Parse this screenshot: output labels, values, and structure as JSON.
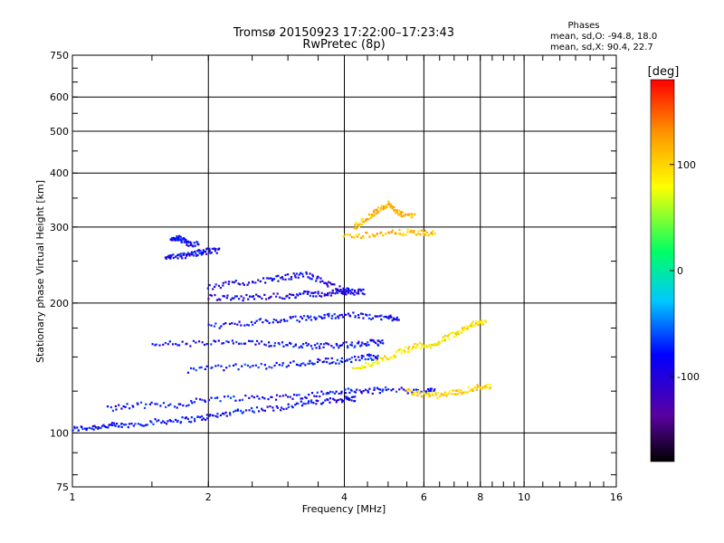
{
  "header": {
    "title_line1": "Tromsø 20150923 17:22:00–17:23:43",
    "title_line2": "RwPretec (8p)",
    "phases_title": "Phases",
    "phases_o": "mean, sd,O: -94.8, 18.0",
    "phases_x": "mean, sd,X:  90.4, 22.7"
  },
  "chart_data": {
    "type": "scatter",
    "title": "Tromsø 20150923 17:22:00–17:23:43",
    "subtitle": "RwPretec (8p)",
    "xlabel": "Frequency [MHz]",
    "ylabel": "Stationary phase Virtual Height [km]",
    "x_scale": "log",
    "y_scale": "log",
    "xlim": [
      1,
      16
    ],
    "ylim": [
      75,
      750
    ],
    "x_ticks": [
      1,
      2,
      4,
      6,
      8,
      10,
      16
    ],
    "x_tick_labels": [
      "1",
      "2",
      "4",
      "6",
      "8",
      "10",
      "16"
    ],
    "y_ticks": [
      75,
      100,
      200,
      300,
      400,
      500,
      600,
      750
    ],
    "y_tick_labels": [
      "75",
      "100",
      "200",
      "300",
      "400",
      "500",
      "600",
      "750"
    ],
    "grid": true,
    "colorbar": {
      "label": "[deg]",
      "range": [
        -180,
        180
      ],
      "ticks": [
        100,
        0,
        -100
      ],
      "tick_labels": [
        "100",
        "0",
        "-100"
      ],
      "colors": [
        "#000000",
        "#5a00a0",
        "#0000ff",
        "#00c8ff",
        "#00ff64",
        "#ffff00",
        "#ff9600",
        "#ff0000"
      ]
    },
    "traces": [
      {
        "name": "",
        "kind": "O",
        "phase": -100,
        "x": [
          1.0,
          1.1,
          1.2,
          1.3,
          1.5,
          1.7,
          1.9,
          2.1,
          2.4,
          2.8,
          3.2,
          3.6,
          4.0
        ],
        "y": [
          102,
          103,
          104,
          104,
          106,
          107,
          108,
          110,
          113,
          114,
          117,
          118,
          120
        ]
      },
      {
        "name": "",
        "kind": "O",
        "phase": -100,
        "x": [
          1.2,
          1.4,
          1.7,
          2.0,
          2.5,
          3.0,
          3.5,
          4.0,
          4.5,
          5.0,
          6.0
        ],
        "y": [
          114,
          116,
          116,
          120,
          121,
          121,
          123,
          125,
          125,
          126,
          125
        ]
      },
      {
        "name": "",
        "kind": "O",
        "phase": -100,
        "x": [
          1.5,
          1.8,
          2.2,
          2.6,
          3.0,
          3.4,
          3.8,
          4.2,
          4.6
        ],
        "y": [
          161,
          161,
          162,
          161,
          161,
          159,
          160,
          160,
          162
        ]
      },
      {
        "name": "",
        "kind": "O",
        "phase": -95,
        "x": [
          1.8,
          2.2,
          2.7,
          3.2,
          3.6,
          4.0,
          4.5
        ],
        "y": [
          140,
          142,
          143,
          145,
          147,
          147,
          150
        ]
      },
      {
        "name": "",
        "kind": "O",
        "phase": -100,
        "x": [
          2.0,
          2.4,
          2.8,
          3.2,
          3.6,
          4.0,
          4.5,
          5.0
        ],
        "y": [
          176,
          180,
          182,
          184,
          186,
          188,
          186,
          185
        ]
      },
      {
        "name": "",
        "kind": "O",
        "phase": -110,
        "x": [
          2.0,
          2.3,
          2.7,
          3.0,
          3.3,
          3.6,
          3.9,
          4.2
        ],
        "y": [
          218,
          222,
          226,
          230,
          233,
          224,
          216,
          212
        ]
      },
      {
        "name": "",
        "kind": "O",
        "phase": -100,
        "x": [
          1.65,
          1.7,
          1.75,
          1.8
        ],
        "y": [
          278,
          284,
          280,
          274
        ]
      },
      {
        "name": "",
        "kind": "O",
        "phase": -105,
        "x": [
          1.6,
          1.7,
          1.8,
          1.9,
          2.0
        ],
        "y": [
          254,
          256,
          258,
          262,
          264
        ]
      },
      {
        "name": "",
        "kind": "O",
        "phase": -110,
        "x": [
          2.0,
          2.3,
          2.6,
          3.0,
          3.3,
          3.6,
          3.9
        ],
        "y": [
          206,
          205,
          207,
          208,
          210,
          210,
          212
        ]
      },
      {
        "name": "",
        "kind": "X",
        "phase": 110,
        "x": [
          4.2,
          4.4,
          4.6,
          4.8,
          5.0,
          5.2,
          5.4
        ],
        "y": [
          300,
          310,
          320,
          330,
          340,
          325,
          320
        ]
      },
      {
        "name": "",
        "kind": "X",
        "phase": 110,
        "x": [
          4.0,
          4.5,
          5.0,
          5.5,
          6.0
        ],
        "y": [
          285,
          288,
          290,
          292,
          290
        ]
      },
      {
        "name": "",
        "kind": "X",
        "phase": 100,
        "x": [
          5.5,
          6.0,
          6.5,
          7.0,
          7.5,
          8.0
        ],
        "y": [
          125,
          123,
          122,
          124,
          126,
          128
        ]
      },
      {
        "name": "",
        "kind": "X",
        "phase": 90,
        "x": [
          4.2,
          4.6,
          5.0,
          5.4,
          5.8,
          6.2,
          6.6,
          7.0,
          7.4,
          7.8
        ],
        "y": [
          140,
          145,
          150,
          155,
          160,
          158,
          165,
          170,
          175,
          180
        ]
      }
    ]
  }
}
